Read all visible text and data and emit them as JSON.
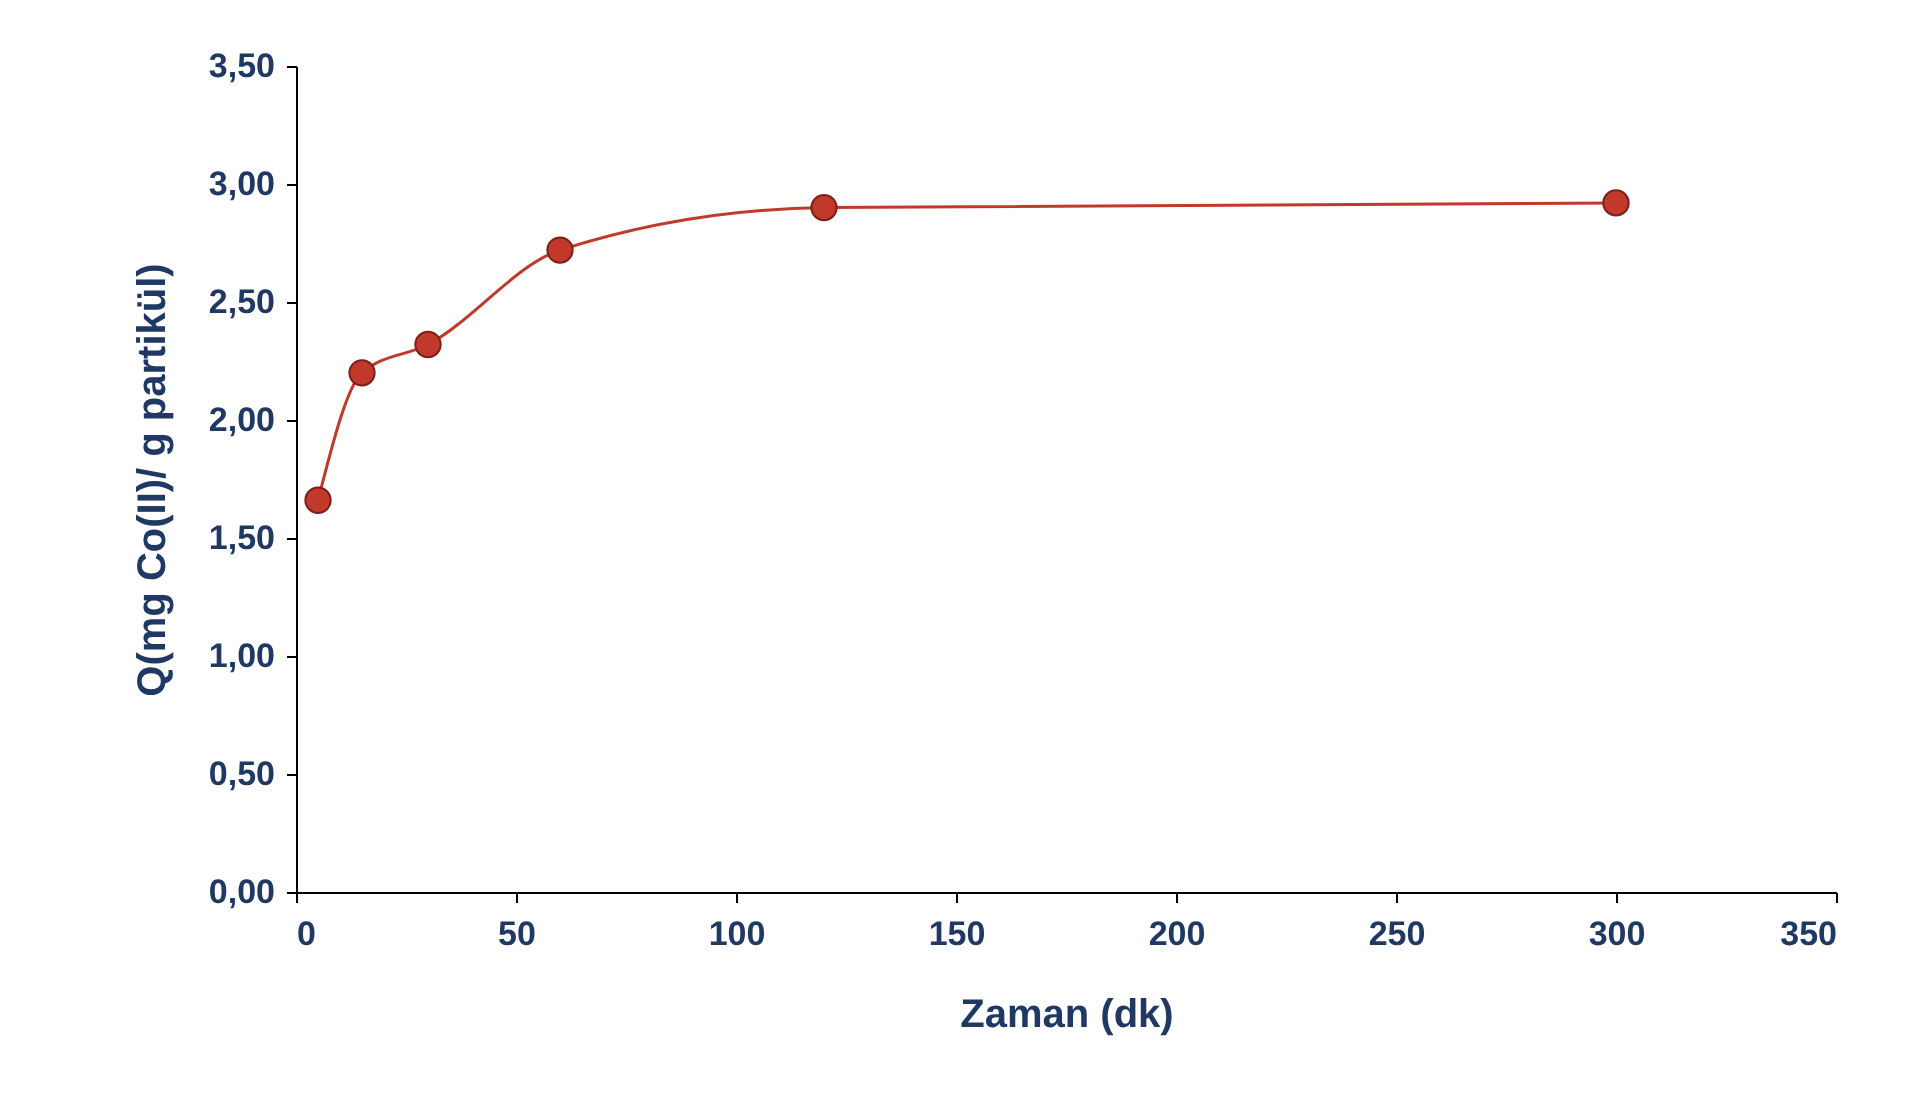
{
  "chart_data": {
    "type": "line",
    "xlabel": "Zaman (dk)",
    "ylabel": "Q(mg Co(II)/ g partikül)",
    "x": [
      5,
      15,
      30,
      60,
      120,
      300
    ],
    "series": [
      {
        "color": "#c0392b",
        "values": [
          1.66,
          2.2,
          2.32,
          2.72,
          2.9,
          2.92
        ]
      }
    ],
    "xlim": [
      0,
      350
    ],
    "xticks": [
      0,
      50,
      100,
      150,
      200,
      250,
      300,
      350
    ],
    "ylim": [
      0,
      3.5
    ],
    "yticks": [
      {
        "value": 0,
        "label": "0,00"
      },
      {
        "value": 0.5,
        "label": "0,50"
      },
      {
        "value": 1,
        "label": "1,00"
      },
      {
        "value": 1.5,
        "label": "1,50"
      },
      {
        "value": 2,
        "label": "2,00"
      },
      {
        "value": 2.5,
        "label": "2,50"
      },
      {
        "value": 3,
        "label": "3,00"
      },
      {
        "value": 3.5,
        "label": "3,50"
      }
    ],
    "grid": false,
    "marker": "circle",
    "line_style": "solid"
  }
}
